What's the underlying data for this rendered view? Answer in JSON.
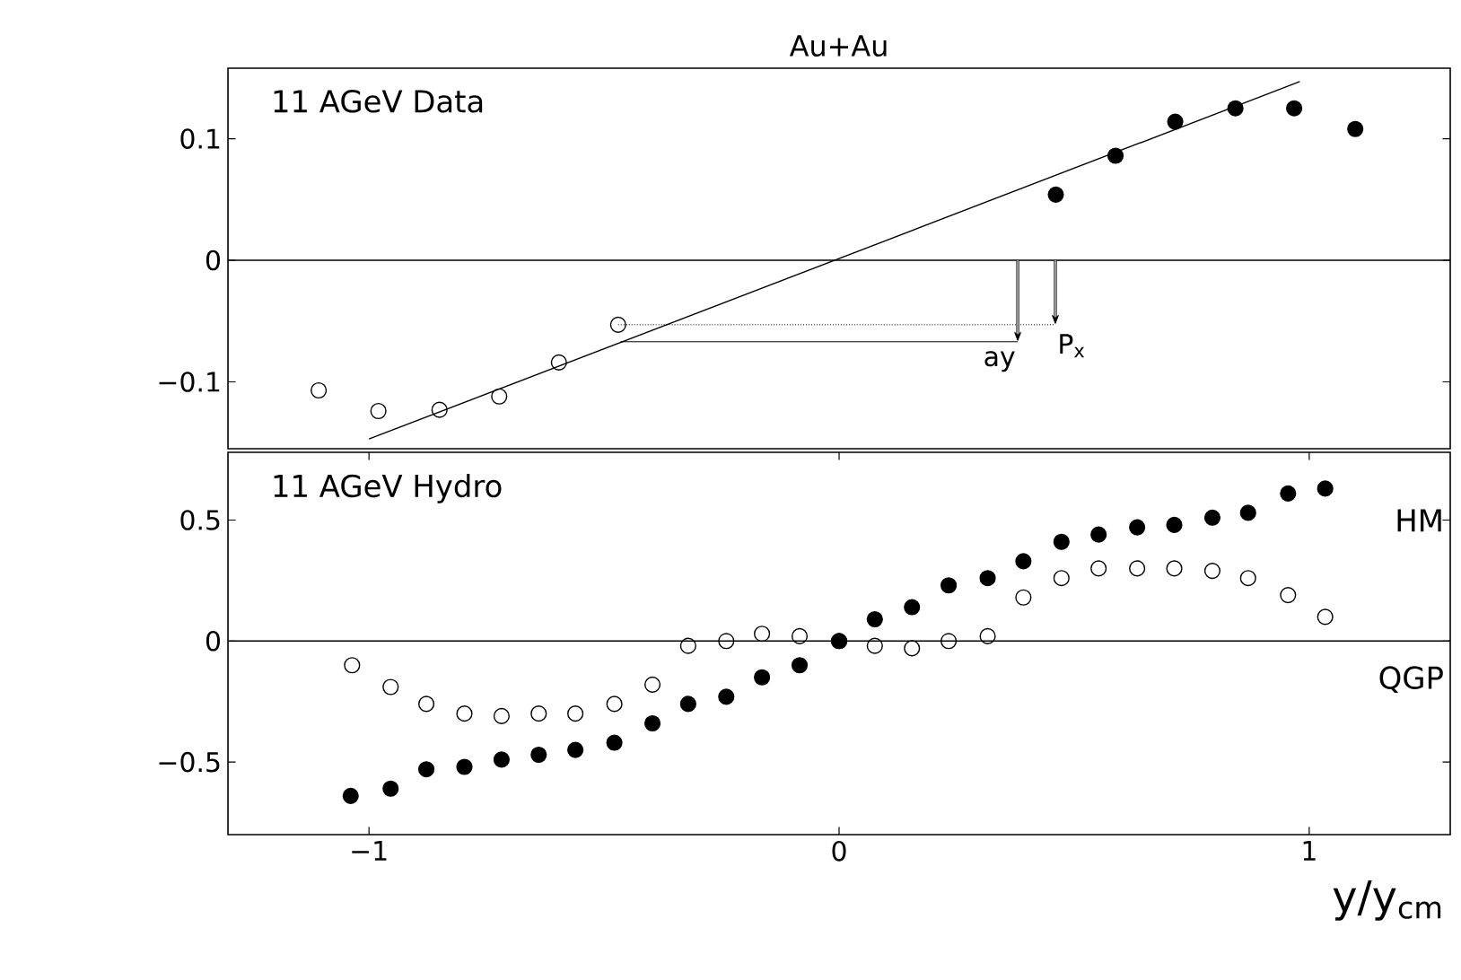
{
  "chart_data": [
    {
      "type": "scatter",
      "title": "Au+Au",
      "annotations": [
        "11 AGeV Data",
        {
          "text": "P$_{x}$",
          "x": -0.47,
          "y": -0.053
        },
        {
          "text": "ay",
          "x": -0.465,
          "y": -0.067
        }
      ],
      "xlim": [
        -1.3,
        1.3
      ],
      "ylim": [
        -0.155,
        0.158
      ],
      "yticks": [
        {
          "value": 0.1,
          "label": "0.1"
        },
        {
          "value": 0,
          "label": "0"
        },
        {
          "value": -0.1,
          "label": "−0.1"
        }
      ],
      "tick_labels": "y",
      "marker": "circle",
      "ref_lines": [
        {
          "axis": "y",
          "value": 0
        }
      ],
      "series": [
        {
          "color": "#000000",
          "x": [
            -1.107,
            -0.98,
            -0.85,
            -0.723,
            -0.596,
            -0.47
          ],
          "values": [
            -0.107,
            -0.124,
            -0.123,
            -0.112,
            -0.084,
            -0.053
          ]
        },
        {
          "color": "#000000",
          "x": [
            0.461,
            0.588,
            0.715,
            0.843,
            0.968,
            1.098
          ],
          "values": [
            0.054,
            0.086,
            0.114,
            0.125,
            0.125,
            0.108
          ]
        },
        {
          "type": "line",
          "marker": "none",
          "color": "#000000",
          "x": [
            -1.0,
            0.98
          ],
          "values": [
            -0.147,
            0.147
          ]
        }
      ]
    },
    {
      "type": "scatter",
      "xlabel": "y/y$_{cm}$",
      "annotations": [
        "11 AGeV Hydro"
      ],
      "legend": "right",
      "xlim": [
        -1.3,
        1.3
      ],
      "ylim": [
        -0.8,
        0.78
      ],
      "xticks": [
        {
          "value": -1,
          "label": "−1"
        },
        {
          "value": 0,
          "label": "0"
        },
        {
          "value": 1,
          "label": "1"
        }
      ],
      "yticks": [
        {
          "value": 0.5,
          "label": "0.5"
        },
        {
          "value": 0,
          "label": "0"
        },
        {
          "value": -0.5,
          "label": "−0.5"
        }
      ],
      "marker": "circle",
      "ref_lines": [
        {
          "axis": "y",
          "value": 0
        }
      ],
      "series": [
        {
          "name": "HM",
          "color": "#000000",
          "x": [
            -1.039,
            -0.954,
            -0.878,
            -0.797,
            -0.718,
            -0.639,
            -0.561,
            -0.478,
            -0.397,
            -0.321,
            -0.24,
            -0.164,
            -0.084,
            0,
            0.076,
            0.155,
            0.233,
            0.316,
            0.392,
            0.473,
            0.552,
            0.634,
            0.713,
            0.794,
            0.87,
            0.955,
            1.034
          ],
          "values": [
            -0.64,
            -0.61,
            -0.53,
            -0.52,
            -0.49,
            -0.47,
            -0.45,
            -0.42,
            -0.34,
            -0.26,
            -0.23,
            -0.15,
            -0.1,
            0,
            0.09,
            0.14,
            0.23,
            0.26,
            0.33,
            0.41,
            0.44,
            0.47,
            0.48,
            0.51,
            0.53,
            0.61,
            0.63
          ]
        },
        {
          "name": "QGP",
          "color": "#000000",
          "x": [
            -1.036,
            -0.954,
            -0.878,
            -0.797,
            -0.718,
            -0.639,
            -0.561,
            -0.478,
            -0.397,
            -0.321,
            -0.24,
            -0.164,
            -0.084,
            0,
            0.076,
            0.155,
            0.233,
            0.316,
            0.392,
            0.473,
            0.552,
            0.634,
            0.713,
            0.794,
            0.87,
            0.955,
            1.034
          ],
          "values": [
            -0.1,
            -0.19,
            -0.26,
            -0.3,
            -0.31,
            -0.3,
            -0.3,
            -0.26,
            -0.18,
            -0.02,
            0,
            0.03,
            0.02,
            0,
            -0.02,
            -0.03,
            0,
            0.02,
            0.18,
            0.26,
            0.3,
            0.3,
            0.3,
            0.29,
            0.26,
            0.19,
            0.1
          ]
        }
      ]
    }
  ]
}
